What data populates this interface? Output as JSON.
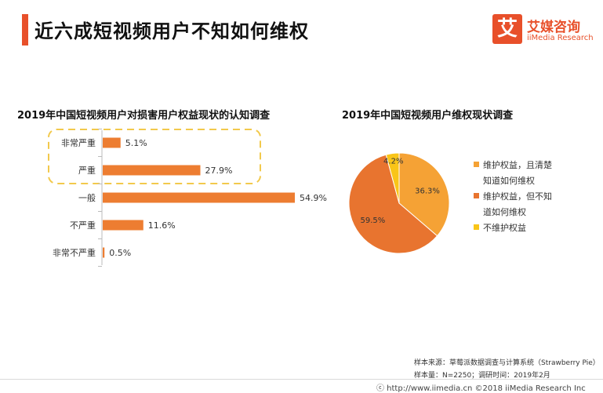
{
  "title": "近六成短视频用户不知如何维权",
  "logo": {
    "mark": "艾",
    "cn": "艾媒咨询",
    "en": "iiMedia Research"
  },
  "chart_data": [
    {
      "type": "bar",
      "title": "2019年中国短视频用户对损害用户权益现状的认知调查",
      "categories": [
        "非常严重",
        "严重",
        "一般",
        "不严重",
        "非常不严重"
      ],
      "values": [
        5.1,
        27.9,
        54.9,
        11.6,
        0.5
      ],
      "value_labels": [
        "5.1%",
        "27.9%",
        "54.9%",
        "11.6%",
        "0.5%"
      ],
      "orientation": "horizontal",
      "color": "#ed7d31",
      "highlight": {
        "categories": [
          "非常严重",
          "严重"
        ],
        "color": "#f2c94c"
      }
    },
    {
      "type": "pie",
      "title": "2019年中国短视频用户维权现状调查",
      "labels": [
        "维护权益，且清楚知道如何维权",
        "维护权益，但不知道如何维权",
        "不维护权益"
      ],
      "values": [
        36.3,
        59.5,
        4.2
      ],
      "value_labels": [
        "36.3%",
        "59.5%",
        "4.2%"
      ],
      "colors": [
        "#f5a235",
        "#e8742f",
        "#f9c518"
      ],
      "legend": {
        "position": "right",
        "lines": [
          [
            "维护权益，且清楚",
            "知道如何维权"
          ],
          [
            "维护权益，但不知",
            "道如何维权"
          ],
          [
            "不维护权益"
          ]
        ]
      }
    }
  ],
  "footer": {
    "source": "样本来源：草莓派数据调查与计算系统（Strawberry Pie）",
    "sample": "样本量：N=2250；调研时间：2019年2月",
    "site": "ⓒ http://www.iimedia.cn   ©2018  iiMedia Research Inc"
  }
}
